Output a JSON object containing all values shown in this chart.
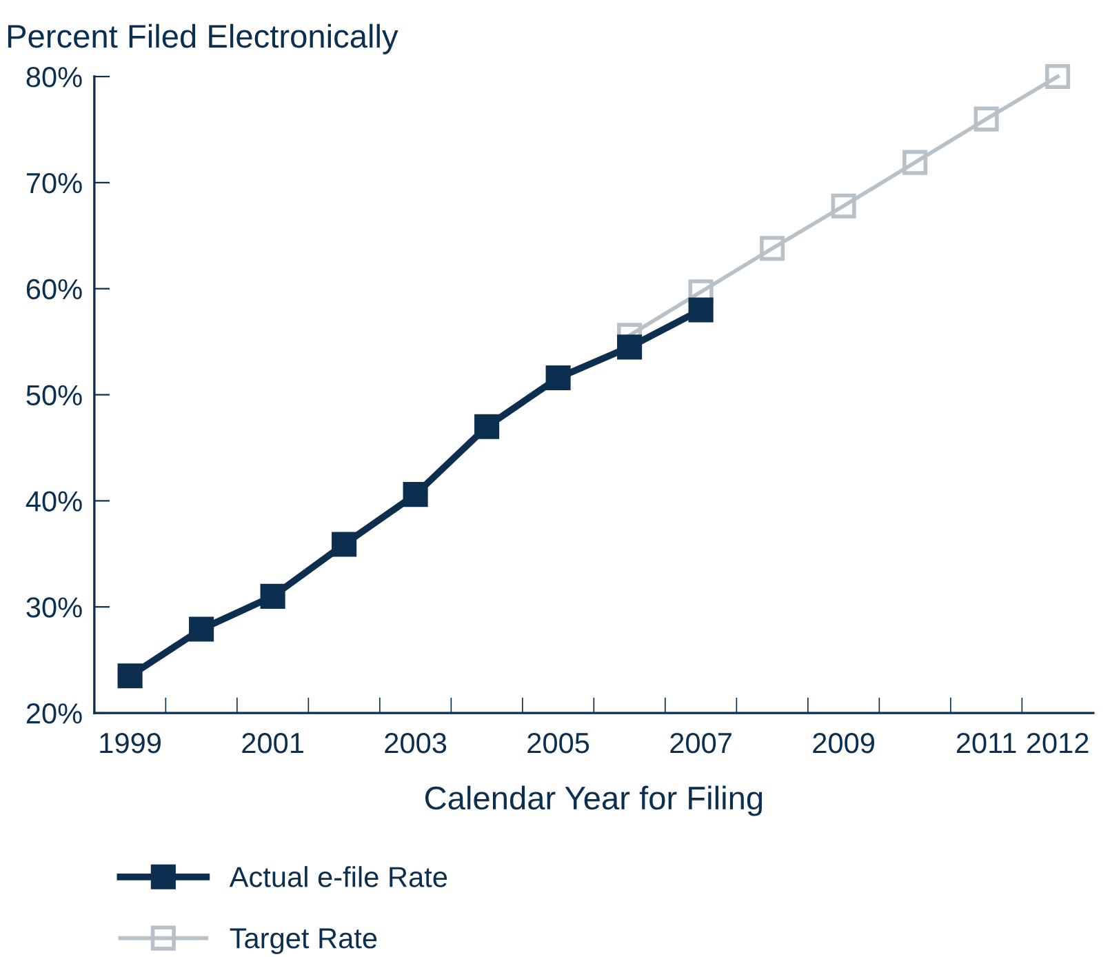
{
  "chart_data": {
    "type": "line",
    "title": "Percent Filed Electronically",
    "xlabel": "Calendar Year for Filing",
    "categories": [
      "1999",
      null,
      "2001",
      null,
      "2003",
      null,
      "2005",
      null,
      "2007",
      null,
      "2009",
      null,
      "2011",
      "2012"
    ],
    "series": [
      {
        "name": "Actual e-file Rate",
        "color": "#0d2f4f",
        "values": [
          23.5,
          27.9,
          31.0,
          35.9,
          40.6,
          47.0,
          51.6,
          54.5,
          58.0,
          null,
          null,
          null,
          null,
          null
        ]
      },
      {
        "name": "Target Rate",
        "color": "#b8c0c8",
        "values": [
          null,
          null,
          null,
          null,
          null,
          null,
          null,
          55.6,
          59.7,
          63.8,
          67.8,
          71.9,
          76.0,
          80.0
        ]
      }
    ],
    "ylim": [
      20,
      80
    ],
    "yticks": [
      {
        "value": 20,
        "label": "20%"
      },
      {
        "value": 30,
        "label": "30%"
      },
      {
        "value": 40,
        "label": "40%"
      },
      {
        "value": 50,
        "label": "50%"
      },
      {
        "value": 60,
        "label": "60%"
      },
      {
        "value": 70,
        "label": "70%"
      },
      {
        "value": 80,
        "label": "80%"
      }
    ],
    "marker": "square",
    "line_style": "solid",
    "grid": false,
    "legend": "bottom"
  }
}
